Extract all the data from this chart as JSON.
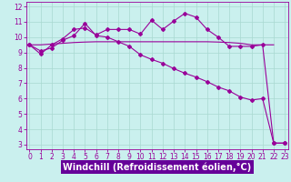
{
  "x": [
    0,
    1,
    2,
    3,
    4,
    5,
    6,
    7,
    8,
    9,
    10,
    11,
    12,
    13,
    14,
    15,
    16,
    17,
    18,
    19,
    20,
    21,
    22,
    23
  ],
  "line1_y": [
    9.5,
    8.9,
    9.5,
    9.9,
    10.5,
    10.6,
    10.15,
    10.5,
    10.5,
    10.5,
    10.2,
    11.1,
    10.5,
    11.05,
    11.55,
    11.3,
    10.5,
    10.0,
    9.4,
    9.4,
    9.4,
    9.5,
    3.1,
    3.1
  ],
  "line2_y": [
    9.5,
    9.1,
    9.3,
    9.8,
    10.1,
    10.9,
    10.1,
    10.0,
    9.7,
    9.4,
    8.85,
    8.55,
    8.3,
    7.95,
    7.65,
    7.4,
    7.1,
    6.75,
    6.5,
    6.1,
    5.9,
    6.0,
    3.1,
    3.1
  ],
  "line3_x": [
    0,
    1,
    2,
    3,
    4,
    5,
    6,
    7,
    8,
    9,
    10,
    11,
    12,
    13,
    14,
    15,
    16,
    17,
    18,
    19,
    20,
    21,
    22
  ],
  "line3_y": [
    9.5,
    9.5,
    9.55,
    9.6,
    9.65,
    9.68,
    9.7,
    9.7,
    9.7,
    9.7,
    9.7,
    9.7,
    9.7,
    9.7,
    9.7,
    9.7,
    9.7,
    9.68,
    9.65,
    9.6,
    9.5,
    9.5,
    9.5
  ],
  "line_color": "#990099",
  "bg_color": "#caf0ee",
  "grid_color": "#a8d8d0",
  "xlabel_bg": "#660099",
  "xlabel": "Windchill (Refroidissement éolien,°C)",
  "ylim": [
    2.7,
    12.3
  ],
  "xlim": [
    -0.3,
    23.3
  ],
  "yticks": [
    3,
    4,
    5,
    6,
    7,
    8,
    9,
    10,
    11,
    12
  ],
  "xticks": [
    0,
    1,
    2,
    3,
    4,
    5,
    6,
    7,
    8,
    9,
    10,
    11,
    12,
    13,
    14,
    15,
    16,
    17,
    18,
    19,
    20,
    21,
    22,
    23
  ],
  "tick_fontsize": 5.5,
  "xlabel_fontsize": 7.0,
  "marker": "D",
  "markersize": 2.0
}
